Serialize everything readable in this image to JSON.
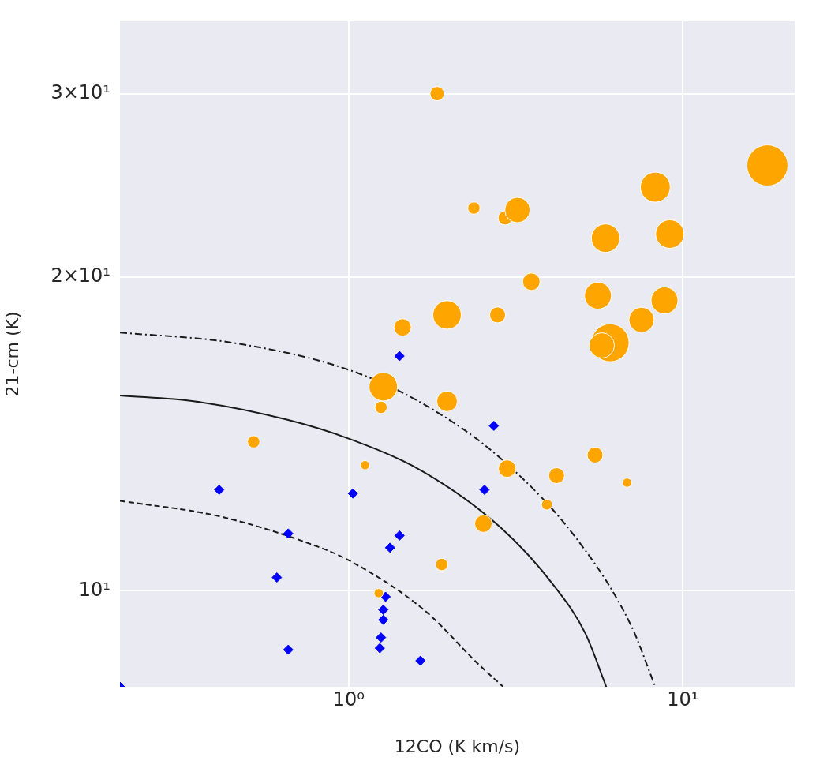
{
  "chart_data": {
    "type": "scatter",
    "xlabel": "12CO (K km/s)",
    "ylabel": "21-cm (K)",
    "log": "xy",
    "grid": true,
    "legend": false,
    "xlim": [
      0.207,
      21.6
    ],
    "ylim": [
      8.09,
      35.2
    ],
    "xticks": [
      {
        "value": 1,
        "label": "10⁰"
      },
      {
        "value": 10,
        "label": "10¹"
      }
    ],
    "yticks": [
      {
        "value": 10,
        "label": "10¹"
      },
      {
        "value": 20,
        "label": "2×10¹"
      },
      {
        "value": 30,
        "label": "3×10¹"
      }
    ],
    "series": [
      {
        "type": "bubble",
        "color": "#ffa500",
        "marker": "circle",
        "x": [
          1.84,
          2.37,
          2.94,
          3.2,
          17.9,
          8.27,
          5.87,
          9.14,
          3.52,
          5.57,
          8.81,
          1.97,
          2.79,
          7.52,
          1.45,
          6.06,
          5.72,
          1.27,
          1.25,
          1.97,
          0.52,
          1.12,
          2.98,
          5.46,
          4.19,
          6.81,
          3.92,
          2.53,
          1.9,
          1.23
        ],
        "values": [
          30.0,
          23.3,
          22.8,
          23.2,
          25.6,
          24.4,
          21.8,
          22.0,
          19.8,
          19.2,
          19.0,
          18.4,
          18.4,
          18.2,
          17.9,
          17.3,
          17.2,
          15.7,
          15.0,
          15.2,
          13.9,
          13.2,
          13.1,
          13.5,
          12.9,
          12.7,
          12.1,
          11.6,
          10.6,
          9.95
        ],
        "sizes": [
          0.12,
          0.09,
          0.12,
          0.38,
          1,
          0.53,
          0.48,
          0.48,
          0.18,
          0.43,
          0.43,
          0.48,
          0.15,
          0.38,
          0.18,
          0.85,
          0.38,
          0.48,
          0.09,
          0.25,
          0.09,
          0.05,
          0.18,
          0.15,
          0.15,
          0.05,
          0.07,
          0.18,
          0.09,
          0.05
        ]
      },
      {
        "color": "#0000ff",
        "marker": "diamond",
        "x": [
          1.42,
          2.72,
          0.41,
          1.03,
          2.55,
          0.66,
          1.42,
          1.33,
          0.61,
          1.29,
          1.27,
          1.27,
          1.25,
          1.24,
          0.66,
          1.64,
          0.207
        ],
        "values": [
          16.8,
          14.4,
          12.5,
          12.4,
          12.5,
          11.35,
          11.3,
          11.0,
          10.3,
          9.87,
          9.59,
          9.38,
          9.02,
          8.81,
          8.78,
          8.57,
          8.09
        ]
      },
      {
        "type": "line",
        "color": "#1a1a1a",
        "marker": "none",
        "line_style": "solid",
        "x": [
          0.207,
          0.347,
          0.653,
          1.0,
          1.68,
          2.85,
          4.13,
          5.1,
          5.9
        ],
        "values": [
          15.4,
          15.2,
          14.6,
          14.0,
          13.0,
          11.5,
          10.1,
          9.11,
          8.09
        ]
      },
      {
        "type": "line",
        "color": "#1a1a1a",
        "marker": "none",
        "line_style": "dashdot",
        "x": [
          0.207,
          0.451,
          1.0,
          1.68,
          2.85,
          4.83,
          6.99,
          8.27
        ],
        "values": [
          17.7,
          17.3,
          16.3,
          15.1,
          13.4,
          11.2,
          9.27,
          8.09
        ]
      },
      {
        "type": "line",
        "color": "#1a1a1a",
        "marker": "none",
        "line_style": "dashed",
        "x": [
          0.207,
          0.406,
          0.764,
          1.0,
          1.68,
          2.44,
          2.9
        ],
        "values": [
          12.2,
          11.8,
          11.1,
          10.7,
          9.59,
          8.51,
          8.09
        ]
      }
    ]
  }
}
